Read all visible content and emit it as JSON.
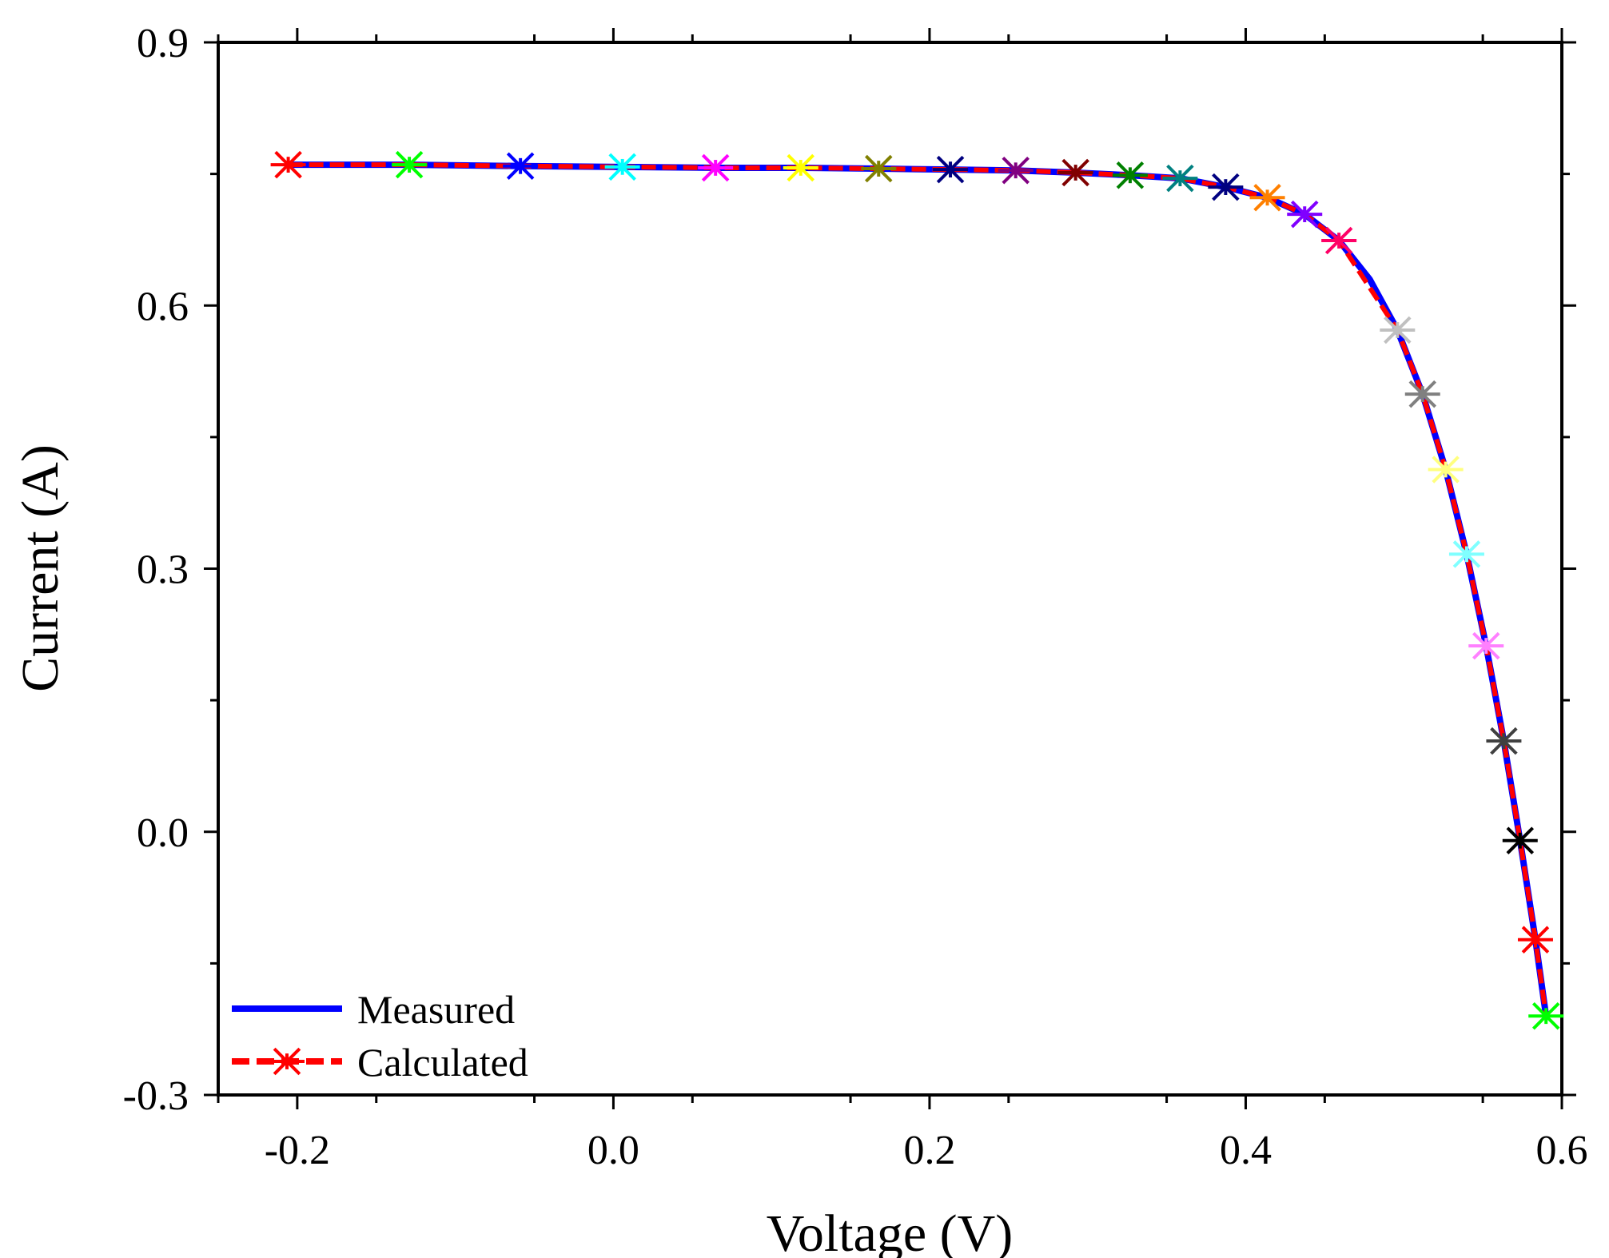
{
  "chart_data": {
    "type": "line",
    "title": "",
    "xlabel": "Voltage (V)",
    "ylabel": "Current (A)",
    "xlim": [
      -0.25,
      0.6
    ],
    "ylim": [
      -0.3,
      0.9
    ],
    "xticks": [
      "-0.2",
      "0.0",
      "0.2",
      "0.4",
      "0.6"
    ],
    "xtick_values": [
      -0.2,
      0.0,
      0.2,
      0.4,
      0.6
    ],
    "yticks": [
      "-0.3",
      "0.0",
      "0.3",
      "0.6",
      "0.9"
    ],
    "ytick_values": [
      -0.3,
      0.0,
      0.3,
      0.6,
      0.9
    ],
    "grid": false,
    "legend_position": "bottom-left",
    "series": [
      {
        "name": "Measured",
        "style": "solid",
        "color": "#0000ff",
        "marker": "none",
        "x": [
          -0.2057,
          -0.1291,
          -0.0588,
          0.0057,
          0.0646,
          0.1185,
          0.1678,
          0.2132,
          0.2545,
          0.2924,
          0.3269,
          0.3585,
          0.3873,
          0.4137,
          0.4373,
          0.459,
          0.4784,
          0.496,
          0.5119,
          0.5265,
          0.5398,
          0.5521,
          0.5633,
          0.5736,
          0.5833,
          0.59
        ],
        "y": [
          0.7605,
          0.7605,
          0.759,
          0.758,
          0.757,
          0.757,
          0.756,
          0.755,
          0.754,
          0.7515,
          0.7485,
          0.745,
          0.735,
          0.723,
          0.704,
          0.674,
          0.63,
          0.572,
          0.499,
          0.413,
          0.3165,
          0.212,
          0.1035,
          -0.01,
          -0.123,
          -0.21
        ]
      },
      {
        "name": "Calculated",
        "style": "dashed",
        "color": "#ff0000",
        "marker": "asterisk",
        "x": [
          -0.2057,
          -0.1291,
          -0.0588,
          0.0057,
          0.0646,
          0.1185,
          0.1678,
          0.2132,
          0.2545,
          0.2924,
          0.3269,
          0.3585,
          0.3873,
          0.4137,
          0.4373,
          0.459,
          0.496,
          0.5119,
          0.5265,
          0.5398,
          0.5521,
          0.5633,
          0.5736,
          0.5833,
          0.59
        ],
        "y": [
          0.7605,
          0.7605,
          0.759,
          0.758,
          0.757,
          0.757,
          0.756,
          0.755,
          0.754,
          0.7515,
          0.7485,
          0.745,
          0.735,
          0.723,
          0.704,
          0.674,
          0.572,
          0.499,
          0.413,
          0.3165,
          0.212,
          0.1035,
          -0.01,
          -0.123,
          -0.21
        ],
        "marker_colors": [
          "#ff0000",
          "#00ff00",
          "#0000ff",
          "#00ffff",
          "#ff00ff",
          "#ffff00",
          "#808000",
          "#000080",
          "#800080",
          "#800000",
          "#008000",
          "#008080",
          "#000080",
          "#ff8000",
          "#8000ff",
          "#ff0066",
          "#c0c0c0",
          "#808080",
          "#ffff80",
          "#80ffff",
          "#ff80ff",
          "#404040",
          "#000000",
          "#ff0000",
          "#00ff00"
        ]
      }
    ]
  }
}
